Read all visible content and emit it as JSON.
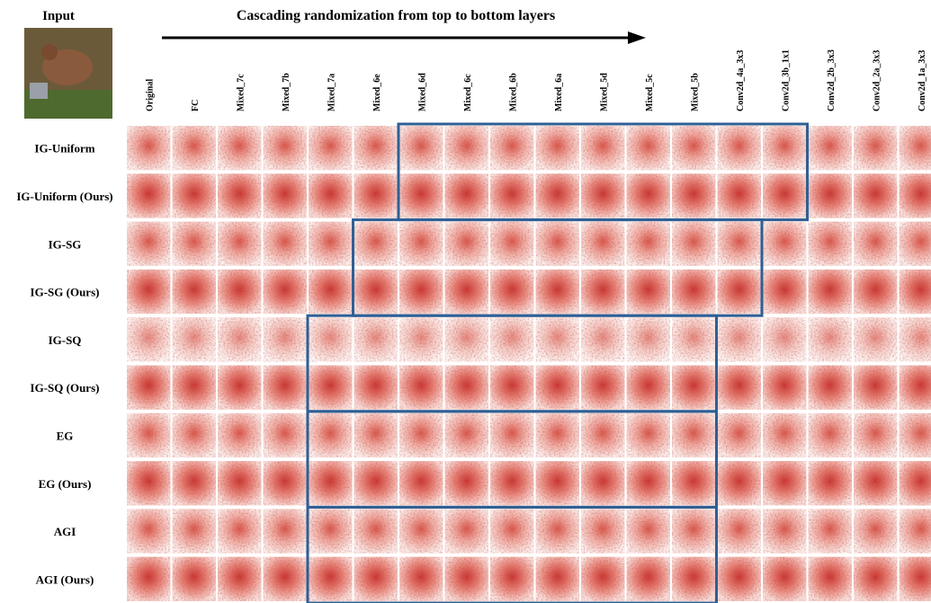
{
  "header": {
    "input_label": "Input",
    "caption": "Cascading randomization from top to bottom layers"
  },
  "columns": [
    "Original",
    "FC",
    "Mixed_7c",
    "Mixed_7b",
    "Mixed_7a",
    "Mixed_6e",
    "Mixed_6d",
    "Mixed_6c",
    "Mixed_6b",
    "Mixed_6a",
    "Mixed_5d",
    "Mixed_5c",
    "Mixed_5b",
    "Conv2d_4a_3x3",
    "Conv2d_3b_1x1",
    "Conv2d_2b_3x3",
    "Conv2d_2a_3x3",
    "Conv2d_1a_3x3"
  ],
  "rows": [
    "IG-Uniform",
    "IG-Uniform (Ours)",
    "IG-SG",
    "IG-SG (Ours)",
    "IG-SQ",
    "IG-SQ (Ours)",
    "EG",
    "EG (Ours)",
    "AGI",
    "AGI (Ours)"
  ]
}
